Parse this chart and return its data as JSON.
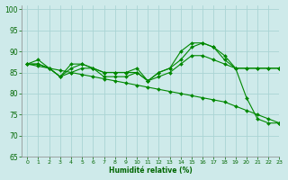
{
  "xlabel": "Humidité relative (%)",
  "background_color": "#ceeaea",
  "grid_color": "#aad4d4",
  "line_color": "#008800",
  "xlim": [
    -0.5,
    23
  ],
  "ylim": [
    65,
    101
  ],
  "yticks": [
    65,
    70,
    75,
    80,
    85,
    90,
    95,
    100
  ],
  "xticks": [
    0,
    1,
    2,
    3,
    4,
    5,
    6,
    7,
    8,
    9,
    10,
    11,
    12,
    13,
    14,
    15,
    16,
    17,
    18,
    19,
    20,
    21,
    22,
    23
  ],
  "series": [
    {
      "x": [
        0,
        1,
        2,
        3,
        4,
        5,
        6,
        7,
        8,
        9,
        10,
        11,
        12,
        13,
        14,
        15,
        16,
        17,
        18,
        19,
        20,
        21,
        22,
        23
      ],
      "y": [
        87,
        88,
        86,
        84,
        87,
        87,
        86,
        85,
        85,
        85,
        86,
        83,
        85,
        86,
        90,
        92,
        92,
        91,
        89,
        86,
        79,
        74,
        73,
        73
      ]
    },
    {
      "x": [
        0,
        1,
        2,
        3,
        4,
        5,
        6,
        7,
        8,
        9,
        10,
        11,
        12,
        13,
        14,
        15,
        16,
        17,
        18,
        19,
        20,
        21,
        22,
        23
      ],
      "y": [
        87,
        87,
        86,
        84,
        86,
        87,
        86,
        85,
        85,
        85,
        85,
        83,
        85,
        86,
        88,
        91,
        92,
        91,
        88,
        86,
        86,
        86,
        86,
        86
      ]
    },
    {
      "x": [
        0,
        1,
        2,
        3,
        4,
        5,
        6,
        7,
        8,
        9,
        10,
        11,
        12,
        13,
        14,
        15,
        16,
        17,
        18,
        19,
        20,
        21,
        22,
        23
      ],
      "y": [
        87,
        87,
        86,
        84,
        85,
        86,
        86,
        84,
        84,
        84,
        85,
        83,
        84,
        85,
        87,
        89,
        89,
        88,
        87,
        86,
        86,
        86,
        86,
        86
      ]
    },
    {
      "x": [
        0,
        1,
        2,
        3,
        4,
        5,
        6,
        7,
        8,
        9,
        10,
        11,
        12,
        13,
        14,
        15,
        16,
        17,
        18,
        19,
        20,
        21,
        22,
        23
      ],
      "y": [
        87,
        86.5,
        86,
        85.5,
        85,
        84.5,
        84,
        83.5,
        83,
        82.5,
        82,
        81.5,
        81,
        80.5,
        80,
        79.5,
        79,
        78.5,
        78,
        77,
        76,
        75,
        74,
        73
      ]
    }
  ]
}
